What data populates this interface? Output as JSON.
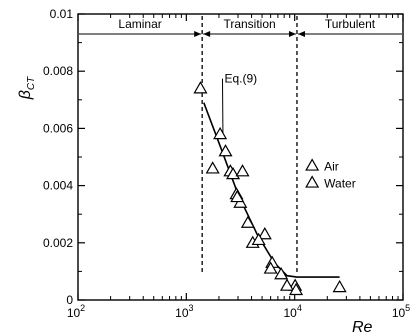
{
  "chart_data": {
    "type": "scatter",
    "title": "",
    "xlabel": "Re",
    "ylabel": {
      "main": "β",
      "sub": "CT"
    },
    "xscale": "log",
    "xlim": [
      100,
      100000
    ],
    "ylim": [
      0,
      0.01
    ],
    "grid": false,
    "x_ticks": [
      {
        "value": 100,
        "base": "10",
        "exp": "2"
      },
      {
        "value": 1000,
        "base": "10",
        "exp": "3"
      },
      {
        "value": 10000,
        "base": "10",
        "exp": "4"
      },
      {
        "value": 100000,
        "base": "10",
        "exp": "5"
      }
    ],
    "y_ticks": [
      {
        "value": 0,
        "label": "0"
      },
      {
        "value": 0.002,
        "label": "0.002"
      },
      {
        "value": 0.004,
        "label": "0.004"
      },
      {
        "value": 0.006,
        "label": "0.006"
      },
      {
        "value": 0.008,
        "label": "0.008"
      },
      {
        "value": 0.01,
        "label": "0.01"
      }
    ],
    "regions": [
      {
        "label": "Laminar",
        "from": 100,
        "to": 1400
      },
      {
        "label": "Transition",
        "from": 1400,
        "to": 10500
      },
      {
        "label": "Turbulent",
        "from": 10500,
        "to": 100000
      }
    ],
    "region_boundaries": [
      1400,
      10500
    ],
    "series": [
      {
        "name": "Air",
        "marker": "triangle",
        "points": [
          {
            "x": 1350,
            "y": 0.0074
          },
          {
            "x": 1750,
            "y": 0.0046
          },
          {
            "x": 2050,
            "y": 0.0058
          },
          {
            "x": 2300,
            "y": 0.0052
          },
          {
            "x": 2550,
            "y": 0.0045
          },
          {
            "x": 2900,
            "y": 0.0037
          },
          {
            "x": 3150,
            "y": 0.0034
          },
          {
            "x": 3700,
            "y": 0.0027
          },
          {
            "x": 5300,
            "y": 0.0023
          },
          {
            "x": 6200,
            "y": 0.0013
          },
          {
            "x": 7500,
            "y": 0.0009
          },
          {
            "x": 10100,
            "y": 0.0005
          },
          {
            "x": 26000,
            "y": 0.00045
          }
        ]
      },
      {
        "name": "Water",
        "marker": "triangle",
        "points": [
          {
            "x": 2700,
            "y": 0.0044
          },
          {
            "x": 2950,
            "y": 0.0036
          },
          {
            "x": 3300,
            "y": 0.0045
          },
          {
            "x": 4100,
            "y": 0.002
          },
          {
            "x": 4650,
            "y": 0.0021
          },
          {
            "x": 6000,
            "y": 0.0011
          },
          {
            "x": 8500,
            "y": 0.0005
          },
          {
            "x": 10300,
            "y": 0.00035
          }
        ]
      }
    ],
    "fit_line": {
      "label": "Eq.(9)",
      "points": [
        {
          "x": 1450,
          "y": 0.0069
        },
        {
          "x": 2000,
          "y": 0.0055
        },
        {
          "x": 3000,
          "y": 0.0037
        },
        {
          "x": 4500,
          "y": 0.0023
        },
        {
          "x": 6500,
          "y": 0.0013
        },
        {
          "x": 8500,
          "y": 0.00085
        },
        {
          "x": 10500,
          "y": 0.0008
        },
        {
          "x": 26000,
          "y": 0.0008
        }
      ]
    },
    "legend": {
      "position": "right",
      "entries": [
        "Air",
        "Water"
      ]
    }
  }
}
